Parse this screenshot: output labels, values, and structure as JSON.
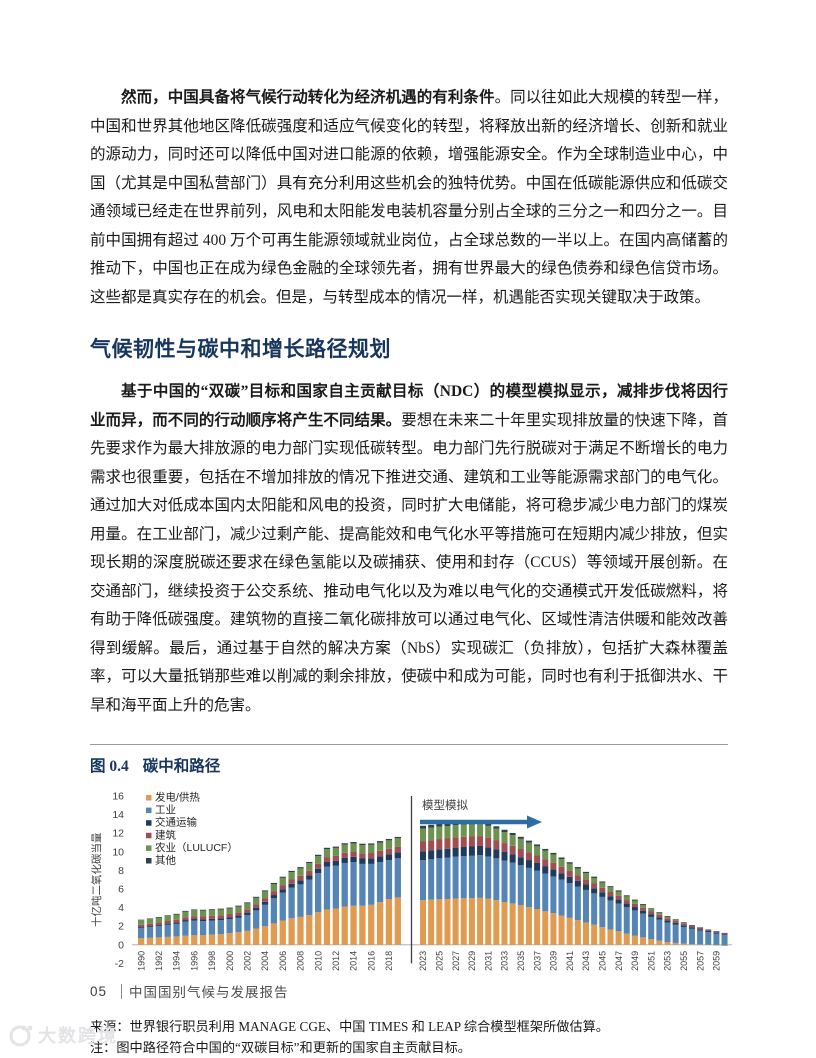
{
  "paragraphs": {
    "p1_bold": "然而，中国具备将气候行动转化为经济机遇的有利条件",
    "p1_rest": "。同以往如此大规模的转型一样，中国和世界其他地区降低碳强度和适应气候变化的转型，将释放出新的经济增长、创新和就业的源动力，同时还可以降低中国对进口能源的依赖，增强能源安全。作为全球制造业中心，中国（尤其是中国私营部门）具有充分利用这些机会的独特优势。中国在低碳能源供应和低碳交通领域已经走在世界前列，风电和太阳能发电装机容量分别占全球的三分之一和四分之一。目前中国拥有超过 400 万个可再生能源领域就业岗位，占全球总数的一半以上。在国内高储蓄的推动下，中国也正在成为绿色金融的全球领先者，拥有世界最大的绿色债券和绿色信贷市场。这些都是真实存在的机会。但是，与转型成本的情况一样，机遇能否实现关键取决于政策。",
    "p2_bold": "基于中国的“双碳”目标和国家自主贡献目标（NDC）的模型模拟显示，减排步伐将因行业而异，而不同的行动顺序将产生不同结果。",
    "p2_rest": "要想在未来二十年里实现排放量的快速下降，首先要求作为最大排放源的电力部门实现低碳转型。电力部门先行脱碳对于满足不断增长的电力需求也很重要，包括在不增加排放的情况下推进交通、建筑和工业等能源需求部门的电气化。通过加大对低成本国内太阳能和风电的投资，同时扩大电储能，将可稳步减少电力部门的煤炭用量。在工业部门，减少过剩产能、提高能效和电气化水平等措施可在短期内减少排放，但实现长期的深度脱碳还要求在绿色氢能以及碳捕获、使用和封存（CCUS）等领域开展创新。在交通部门，继续投资于公交系统、推动电气化以及为难以电气化的交通模式开发低碳燃料，将有助于降低碳强度。建筑物的直接二氧化碳排放可以通过电气化、区域性清洁供暖和能效改善得到缓解。最后，通过基于自然的解决方案（NbS）实现碳汇（负排放），包括扩大森林覆盖率，可以大量抵销那些难以削减的剩余排放，使碳中和成为可能，同时也有利于抵御洪水、干旱和海平面上升的危害。"
  },
  "section": {
    "heading": "气候韧性与碳中和增长路径规划"
  },
  "figure": {
    "label": "图 0.4",
    "title": "碳中和路径",
    "source": "来源：世界银行职员利用 MANAGE CGE、中国 TIMES 和 LEAP 综合模型框架所做估算。",
    "note": "注：图中路径符合中国的“双碳目标”和更新的国家自主贡献目标。",
    "chart_data": {
      "type": "bar",
      "subtype": "stacked_bar",
      "title": "碳中和路径",
      "ylabel": "十亿吨二氧化碳当量",
      "ylim": [
        -2,
        16
      ],
      "y_tick_step": 2,
      "grid": false,
      "legend_position": "top-left",
      "annotation": {
        "text": "模型模拟",
        "arrow_color": "#2e6da4"
      },
      "hist_years": [
        1990,
        1991,
        1992,
        1993,
        1994,
        1995,
        1996,
        1997,
        1998,
        1999,
        2000,
        2001,
        2002,
        2003,
        2004,
        2005,
        2006,
        2007,
        2008,
        2009,
        2010,
        2011,
        2012,
        2013,
        2014,
        2015,
        2016,
        2017,
        2018,
        2019
      ],
      "sim_years": [
        2023,
        2024,
        2025,
        2026,
        2027,
        2028,
        2029,
        2030,
        2031,
        2032,
        2033,
        2034,
        2035,
        2036,
        2037,
        2038,
        2039,
        2040,
        2041,
        2042,
        2043,
        2044,
        2045,
        2046,
        2047,
        2048,
        2049,
        2050,
        2051,
        2052,
        2053,
        2054,
        2055,
        2056,
        2057,
        2058,
        2059,
        2060
      ],
      "series": [
        {
          "name": "发电/供热",
          "color": "#e09b50",
          "hist": [
            0.7,
            0.75,
            0.8,
            0.85,
            0.9,
            1.0,
            1.05,
            1.05,
            1.1,
            1.15,
            1.25,
            1.35,
            1.5,
            1.75,
            2.0,
            2.3,
            2.6,
            2.85,
            3.0,
            3.2,
            3.5,
            3.8,
            3.9,
            4.1,
            4.2,
            4.2,
            4.3,
            4.6,
            4.9,
            5.1
          ],
          "sim": [
            4.8,
            4.85,
            4.9,
            4.92,
            4.97,
            5.0,
            5.02,
            5.05,
            4.95,
            4.8,
            4.6,
            4.45,
            4.25,
            4.05,
            3.85,
            3.6,
            3.4,
            3.15,
            2.9,
            2.65,
            2.4,
            2.15,
            1.9,
            1.65,
            1.45,
            1.2,
            1.0,
            0.8,
            0.6,
            0.45,
            0.3,
            0.2,
            0.12,
            0.07,
            0.04,
            0.02,
            0.01,
            0.0
          ]
        },
        {
          "name": "工业",
          "color": "#5585b5",
          "hist": [
            1.1,
            1.15,
            1.2,
            1.3,
            1.35,
            1.5,
            1.55,
            1.5,
            1.5,
            1.5,
            1.5,
            1.55,
            1.7,
            1.95,
            2.3,
            2.7,
            3.0,
            3.3,
            3.5,
            3.8,
            4.2,
            4.6,
            4.6,
            4.7,
            4.7,
            4.5,
            4.4,
            4.3,
            4.2,
            4.2
          ],
          "sim": [
            4.3,
            4.34,
            4.4,
            4.44,
            4.5,
            4.53,
            4.55,
            4.58,
            4.55,
            4.5,
            4.45,
            4.38,
            4.3,
            4.22,
            4.14,
            4.05,
            3.95,
            3.85,
            3.74,
            3.62,
            3.5,
            3.38,
            3.25,
            3.12,
            2.98,
            2.84,
            2.7,
            2.55,
            2.4,
            2.25,
            2.1,
            1.95,
            1.8,
            1.65,
            1.5,
            1.35,
            1.2,
            1.05
          ]
        },
        {
          "name": "交通运输",
          "color": "#1f3b5e",
          "hist": [
            0.1,
            0.11,
            0.12,
            0.13,
            0.14,
            0.16,
            0.17,
            0.18,
            0.19,
            0.2,
            0.22,
            0.24,
            0.26,
            0.29,
            0.32,
            0.35,
            0.38,
            0.41,
            0.44,
            0.46,
            0.48,
            0.5,
            0.52,
            0.54,
            0.56,
            0.58,
            0.6,
            0.62,
            0.64,
            0.65
          ],
          "sim": [
            0.95,
            0.96,
            0.97,
            0.97,
            0.98,
            0.99,
            1.0,
            1.0,
            0.98,
            0.96,
            0.93,
            0.9,
            0.87,
            0.84,
            0.81,
            0.77,
            0.74,
            0.7,
            0.66,
            0.62,
            0.58,
            0.54,
            0.5,
            0.46,
            0.43,
            0.39,
            0.36,
            0.32,
            0.29,
            0.26,
            0.23,
            0.2,
            0.18,
            0.15,
            0.13,
            0.11,
            0.1,
            0.08
          ]
        },
        {
          "name": "建筑",
          "color": "#a04e52",
          "hist": [
            0.25,
            0.26,
            0.27,
            0.28,
            0.29,
            0.3,
            0.31,
            0.32,
            0.32,
            0.33,
            0.34,
            0.35,
            0.36,
            0.38,
            0.4,
            0.42,
            0.44,
            0.46,
            0.48,
            0.5,
            0.52,
            0.53,
            0.54,
            0.55,
            0.56,
            0.56,
            0.57,
            0.58,
            0.59,
            0.6
          ],
          "sim": [
            1.1,
            1.1,
            1.1,
            1.1,
            1.1,
            1.09,
            1.08,
            1.06,
            1.04,
            1.0,
            0.96,
            0.92,
            0.88,
            0.84,
            0.8,
            0.76,
            0.72,
            0.68,
            0.64,
            0.6,
            0.56,
            0.52,
            0.48,
            0.45,
            0.42,
            0.38,
            0.35,
            0.32,
            0.29,
            0.26,
            0.23,
            0.21,
            0.18,
            0.16,
            0.14,
            0.12,
            0.11,
            0.1
          ]
        },
        {
          "name": "农业（LULUCF）",
          "color": "#6e9250",
          "hist": [
            0.5,
            0.52,
            0.54,
            0.56,
            0.58,
            0.62,
            0.64,
            0.64,
            0.64,
            0.62,
            0.6,
            0.62,
            0.64,
            0.68,
            0.72,
            0.76,
            0.78,
            0.8,
            0.8,
            0.82,
            0.84,
            0.86,
            0.86,
            0.88,
            0.88,
            0.88,
            0.88,
            0.9,
            0.9,
            0.9
          ],
          "sim": [
            1.35,
            1.35,
            1.34,
            1.33,
            1.32,
            1.31,
            1.3,
            1.29,
            1.27,
            1.23,
            1.19,
            1.14,
            1.09,
            1.04,
            0.99,
            0.94,
            0.89,
            0.84,
            0.78,
            0.72,
            0.66,
            0.6,
            0.55,
            0.5,
            0.45,
            0.4,
            0.35,
            0.3,
            0.25,
            0.2,
            0.16,
            0.12,
            0.08,
            0.04,
            0.01,
            -0.02,
            -0.06,
            -0.1
          ]
        },
        {
          "name": "其他",
          "color": "#2f4248",
          "hist": [
            0.05,
            0.05,
            0.06,
            0.06,
            0.07,
            0.07,
            0.08,
            0.08,
            0.08,
            0.09,
            0.09,
            0.1,
            0.1,
            0.11,
            0.11,
            0.12,
            0.12,
            0.13,
            0.13,
            0.13,
            0.14,
            0.14,
            0.14,
            0.15,
            0.15,
            0.15,
            0.15,
            0.15,
            0.15,
            0.15
          ],
          "sim": [
            0.3,
            0.3,
            0.29,
            0.29,
            0.28,
            0.28,
            0.27,
            0.27,
            0.26,
            0.25,
            0.24,
            0.23,
            0.22,
            0.21,
            0.2,
            0.19,
            0.18,
            0.17,
            0.16,
            0.15,
            0.14,
            0.14,
            0.13,
            0.12,
            0.12,
            0.11,
            0.1,
            0.1,
            0.09,
            0.08,
            0.08,
            0.07,
            0.07,
            0.06,
            0.06,
            0.05,
            0.05,
            0.05
          ]
        }
      ]
    }
  },
  "footer": {
    "page_number": "05",
    "report_title": "中国国别气候与发展报告"
  },
  "watermark": {
    "text": "大数跨境"
  },
  "colors": {
    "heading": "#17365d",
    "arrow": "#2e6da4",
    "axis_text": "#404040"
  }
}
